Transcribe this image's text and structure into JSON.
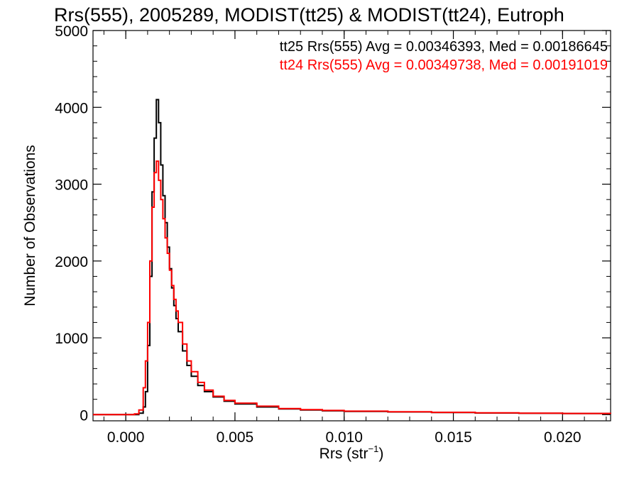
{
  "chart_data": {
    "type": "line",
    "title": "Rrs(555), 2005289, MODIST(tt25) & MODIST(tt24), Eutroph",
    "xlabel": "Rrs (str",
    "xlabel_superscript": "−1",
    "xlabel_suffix": ")",
    "ylabel": "Number of Observations",
    "xlim": [
      -0.0015,
      0.0222
    ],
    "ylim": [
      -80,
      5000
    ],
    "xticks": [
      0.0,
      0.005,
      0.01,
      0.015,
      0.02
    ],
    "xtick_labels": [
      "0.000",
      "0.005",
      "0.010",
      "0.015",
      "0.020"
    ],
    "yticks": [
      0,
      1000,
      2000,
      3000,
      4000,
      5000
    ],
    "ytick_labels": [
      "0",
      "1000",
      "2000",
      "3000",
      "4000",
      "5000"
    ],
    "grid": false,
    "legend_placement": "top-right",
    "series": [
      {
        "name": "tt25",
        "color": "#000000",
        "legend_text": "tt25 Rrs(555) Avg = 0.00346393, Med = 0.00186645",
        "x": [
          -0.0015,
          0.0002,
          0.0004,
          0.0006,
          0.0008,
          0.0009,
          0.001,
          0.0011,
          0.0012,
          0.0013,
          0.0014,
          0.0015,
          0.0016,
          0.0017,
          0.0018,
          0.0019,
          0.002,
          0.0021,
          0.0022,
          0.0023,
          0.0024,
          0.0026,
          0.0028,
          0.003,
          0.0033,
          0.0036,
          0.004,
          0.0045,
          0.005,
          0.006,
          0.007,
          0.008,
          0.009,
          0.01,
          0.012,
          0.014,
          0.016,
          0.018,
          0.02,
          0.0222
        ],
        "y": [
          0,
          0,
          0,
          20,
          100,
          300,
          900,
          1800,
          2900,
          3600,
          4100,
          3800,
          3250,
          2850,
          2500,
          2180,
          1900,
          1650,
          1420,
          1250,
          1080,
          830,
          640,
          500,
          380,
          300,
          230,
          175,
          140,
          100,
          75,
          60,
          50,
          42,
          35,
          28,
          22,
          18,
          14,
          10
        ]
      },
      {
        "name": "tt24",
        "color": "#ff0000",
        "legend_text": "tt24 Rrs(555) Avg = 0.00349738, Med = 0.00191019",
        "x": [
          -0.0015,
          0.0002,
          0.0004,
          0.0006,
          0.0008,
          0.0009,
          0.001,
          0.0011,
          0.0012,
          0.0013,
          0.0014,
          0.0015,
          0.0016,
          0.0017,
          0.0018,
          0.0019,
          0.002,
          0.0021,
          0.0022,
          0.0023,
          0.0024,
          0.0026,
          0.0028,
          0.003,
          0.0033,
          0.0036,
          0.004,
          0.0045,
          0.005,
          0.006,
          0.007,
          0.008,
          0.009,
          0.01,
          0.012,
          0.014,
          0.016,
          0.018,
          0.02,
          0.0222
        ],
        "y": [
          0,
          0,
          10,
          60,
          350,
          700,
          1200,
          2000,
          2700,
          3150,
          3300,
          3050,
          2800,
          2550,
          2300,
          2100,
          1880,
          1680,
          1500,
          1350,
          1200,
          920,
          700,
          560,
          420,
          320,
          240,
          185,
          150,
          110,
          80,
          65,
          55,
          46,
          38,
          30,
          24,
          20,
          16,
          12
        ]
      }
    ]
  }
}
